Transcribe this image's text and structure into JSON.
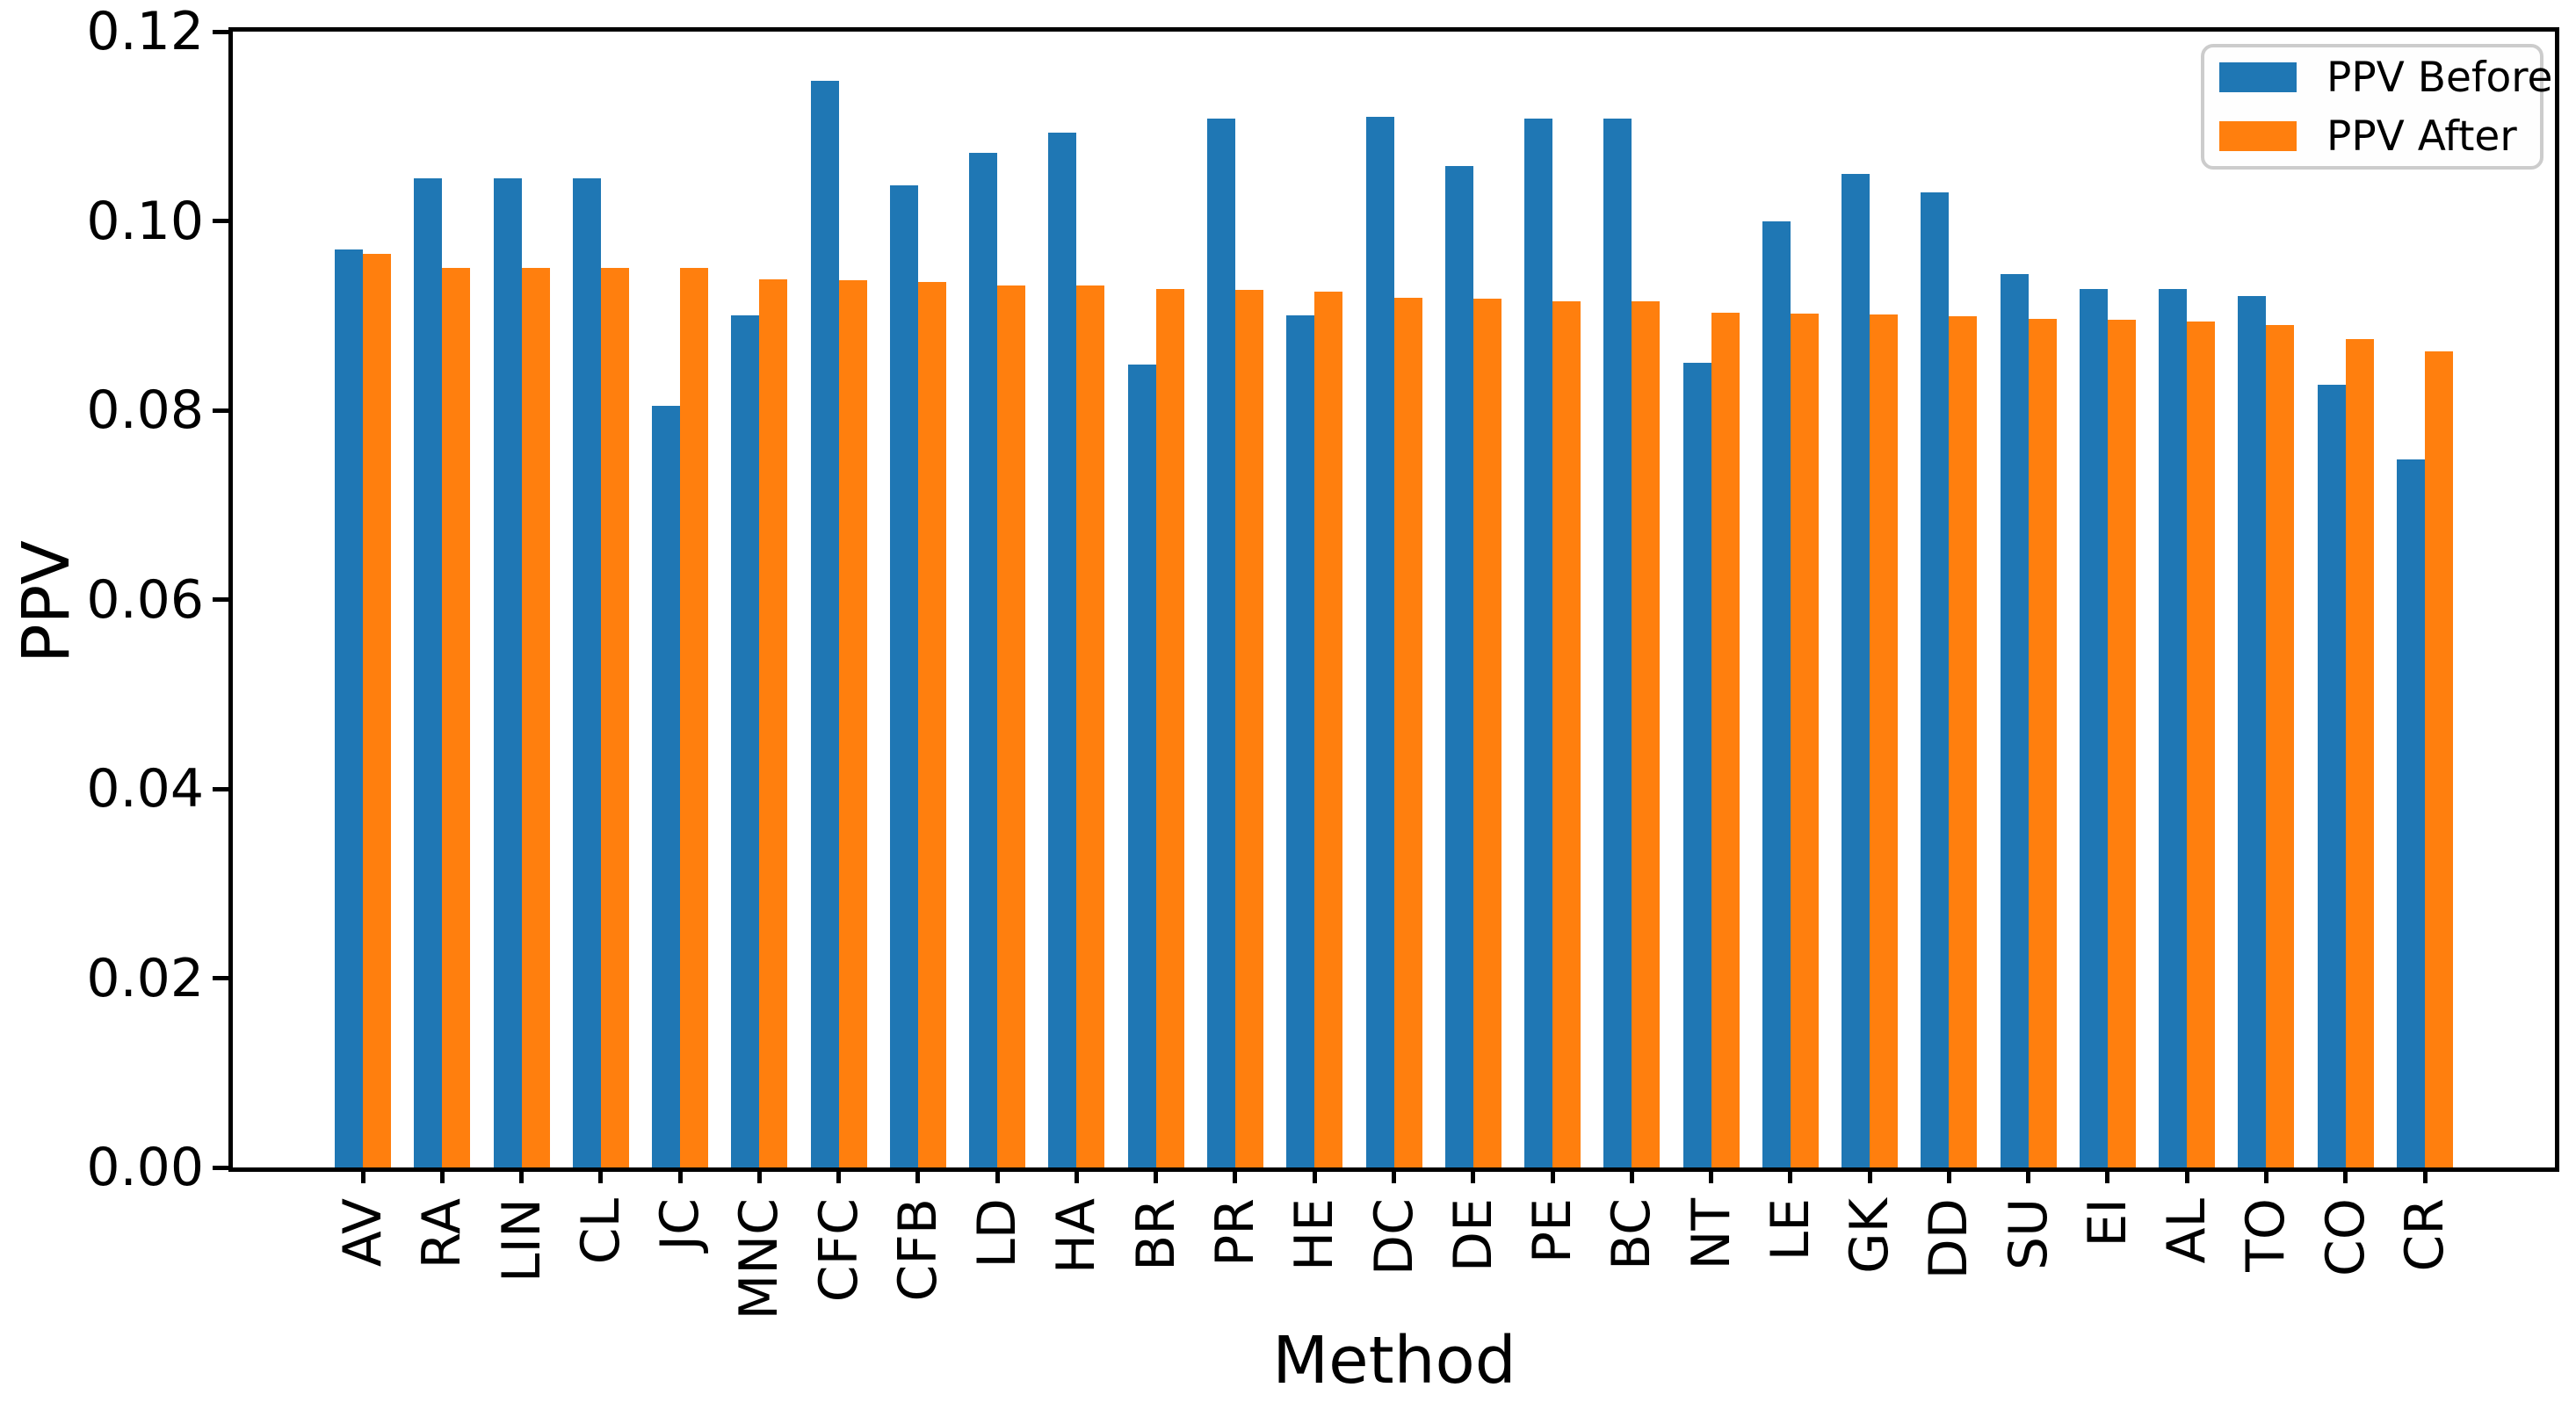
{
  "chart_data": {
    "type": "bar",
    "title": "",
    "xlabel": "Method",
    "ylabel": "PPV",
    "ylim": [
      0,
      0.12
    ],
    "yticks": [
      0.0,
      0.02,
      0.04,
      0.06,
      0.08,
      0.1,
      0.12
    ],
    "ytick_labels": [
      "0.00",
      "0.02",
      "0.04",
      "0.06",
      "0.08",
      "0.10",
      "0.12"
    ],
    "grid": false,
    "legend_position": "upper right",
    "categories": [
      "AV",
      "RA",
      "LIN",
      "CL",
      "JC",
      "MNC",
      "CFC",
      "CFB",
      "LD",
      "HA",
      "BR",
      "PR",
      "HE",
      "DC",
      "DE",
      "PE",
      "BC",
      "NT",
      "LE",
      "GK",
      "DD",
      "SU",
      "EI",
      "AL",
      "TO",
      "CO",
      "CR"
    ],
    "series": [
      {
        "name": "PPV Before",
        "color": "#1f77b4",
        "values": [
          0.097,
          0.1045,
          0.1045,
          0.1045,
          0.0805,
          0.09,
          0.1148,
          0.1038,
          0.1072,
          0.1093,
          0.0848,
          0.1108,
          0.09,
          0.111,
          0.1058,
          0.1108,
          0.1108,
          0.085,
          0.1,
          0.105,
          0.103,
          0.0944,
          0.0928,
          0.0928,
          0.0921,
          0.0827,
          0.0748
        ]
      },
      {
        "name": "PPV After",
        "color": "#ff7f0e",
        "values": [
          0.0965,
          0.095,
          0.095,
          0.095,
          0.095,
          0.0938,
          0.0937,
          0.0936,
          0.0932,
          0.0932,
          0.0928,
          0.0927,
          0.0925,
          0.0919,
          0.0918,
          0.0915,
          0.0915,
          0.0903,
          0.0902,
          0.0901,
          0.0899,
          0.0897,
          0.0896,
          0.0894,
          0.089,
          0.0875,
          0.0862
        ]
      }
    ]
  },
  "legend": {
    "items": [
      {
        "label": "PPV Before",
        "color": "#1f77b4"
      },
      {
        "label": "PPV After",
        "color": "#ff7f0e"
      }
    ]
  },
  "axes": {
    "x_label": "Method",
    "y_label": "PPV"
  }
}
